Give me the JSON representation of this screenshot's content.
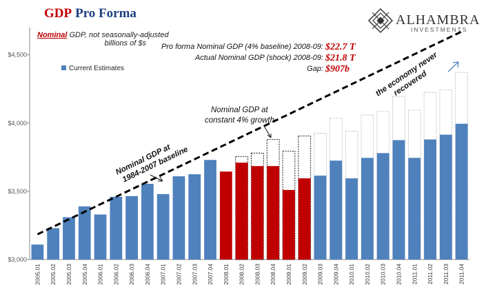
{
  "title": {
    "gdp": "GDP",
    "rest": "Pro Forma",
    "gdp_color": "#c00000",
    "rest_color": "#1f3f7f"
  },
  "subtitle": {
    "nominal": "Nominal",
    "rest": " GDP, not seasonally-adjusted",
    "line2": "billions of $s"
  },
  "brand": {
    "name": "ALHAMBRA",
    "sub": "INVESTMENTS"
  },
  "annotations": {
    "pro_forma_label": "Pro forma Nominal GDP (4% baseline) 2008-09:",
    "pro_forma_value": "$22.7 T",
    "actual_label": "Actual Nominal GDP (shock) 2008-09:",
    "actual_value": "$21.8 T",
    "gap_label": "Gap:",
    "gap_value": "$907b",
    "growth_label_1": "Nominal GDP at",
    "growth_label_2": "constant 4% growth",
    "baseline_label_1": "Nominal GDP at",
    "baseline_label_2": "1984-2007 baseline",
    "recovered_1": "the economy never",
    "recovered_2": "recovered"
  },
  "legend": {
    "label": "Current Estimates",
    "position": "top-left"
  },
  "colors": {
    "blue": "#4f81bd",
    "red": "#c00000",
    "dashed": "#000000"
  },
  "chart_data": {
    "type": "bar",
    "ylim": [
      3000,
      4700
    ],
    "yticks": [
      3000,
      3500,
      4000,
      4500
    ],
    "ytick_labels": [
      "$3,000",
      "$3,500",
      "$4,000",
      "$4,500"
    ],
    "grid": false,
    "categories": [
      "2005.01",
      "2005.02",
      "2005.03",
      "2005.04",
      "2006.01",
      "2006.02",
      "2006.03",
      "2006.04",
      "2007.01",
      "2007.02",
      "2007.03",
      "2007.04",
      "2008.01",
      "2008.02",
      "2008.03",
      "2008.04",
      "2009.01",
      "2009.02",
      "2009.03",
      "2009.04",
      "2010.01",
      "2010.02",
      "2010.03",
      "2010.04",
      "2011.01",
      "2011.02",
      "2011.03",
      "2011.04"
    ],
    "series": [
      {
        "name": "Current Estimates",
        "values": [
          3110,
          3230,
          3310,
          3390,
          3330,
          3460,
          3465,
          3555,
          3480,
          3610,
          3625,
          3730,
          3645,
          3710,
          3685,
          3685,
          3510,
          3595,
          3615,
          3725,
          3595,
          3745,
          3780,
          3875,
          3745,
          3880,
          3915,
          3995
        ],
        "highlight_indices": [
          12,
          13,
          14,
          15,
          16,
          17
        ]
      },
      {
        "values": [
          null,
          null,
          null,
          null,
          null,
          null,
          null,
          null,
          null,
          null,
          null,
          null,
          null,
          3755,
          3780,
          3880,
          3795,
          3905,
          3925,
          4035,
          3940,
          4060,
          4085,
          4195,
          4095,
          4225,
          4245,
          4370
        ]
      }
    ],
    "baseline_trend": {
      "start": {
        "x": "2005.01",
        "y": 3185
      },
      "end": {
        "x": "2011.04",
        "y": 4670
      }
    }
  }
}
